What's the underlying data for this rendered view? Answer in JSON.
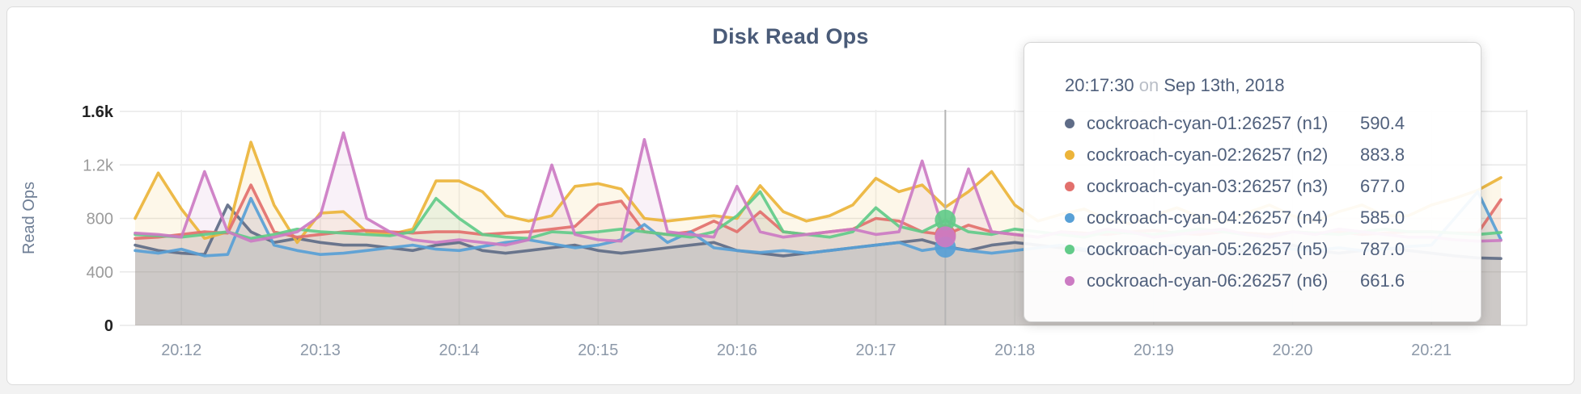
{
  "page": {
    "background": "#f2f2f2",
    "card_background": "#ffffff"
  },
  "chart_data": {
    "type": "line",
    "title": "Disk Read Ops",
    "ylabel": "Read Ops",
    "ylim": [
      0,
      1600
    ],
    "grid": true,
    "x_start": "20:11:40",
    "x_end": "20:21:30",
    "x_step_seconds": 10,
    "x_ticks": [
      {
        "label": "20:12",
        "sec": 20
      },
      {
        "label": "20:13",
        "sec": 80
      },
      {
        "label": "20:14",
        "sec": 140
      },
      {
        "label": "20:15",
        "sec": 200
      },
      {
        "label": "20:16",
        "sec": 260
      },
      {
        "label": "20:17",
        "sec": 320
      },
      {
        "label": "20:18",
        "sec": 380
      },
      {
        "label": "20:19",
        "sec": 440
      },
      {
        "label": "20:20",
        "sec": 500
      },
      {
        "label": "20:21",
        "sec": 560
      }
    ],
    "y_ticks": [
      {
        "label": "1.6k",
        "value": 1600,
        "emph": true
      },
      {
        "label": "1.2k",
        "value": 1200,
        "emph": false
      },
      {
        "label": "800",
        "value": 800,
        "emph": false
      },
      {
        "label": "400",
        "value": 400,
        "emph": false
      },
      {
        "label": "0",
        "value": 0,
        "emph": true
      }
    ],
    "series": [
      {
        "id": "n1",
        "name": "cockroach-cyan-01:26257 (n1)",
        "color": "#5F6C87",
        "values": [
          600,
          560,
          540,
          530,
          900,
          700,
          620,
          650,
          620,
          600,
          600,
          580,
          560,
          600,
          620,
          560,
          540,
          560,
          580,
          600,
          560,
          540,
          560,
          580,
          600,
          620,
          560,
          540,
          520,
          540,
          560,
          580,
          600,
          620,
          640,
          590.4,
          560,
          600,
          620,
          600,
          580,
          560,
          540,
          560,
          580,
          600,
          560,
          540,
          560,
          580,
          600,
          560,
          540,
          560,
          580,
          560,
          540,
          520,
          505,
          500
        ]
      },
      {
        "id": "n2",
        "name": "cockroach-cyan-02:26257 (n2)",
        "color": "#ECB43A",
        "values": [
          800,
          1140,
          870,
          650,
          700,
          1370,
          900,
          620,
          840,
          850,
          700,
          680,
          720,
          1080,
          1080,
          1000,
          820,
          780,
          820,
          1040,
          1060,
          1020,
          800,
          780,
          800,
          820,
          800,
          1045,
          850,
          780,
          820,
          900,
          1100,
          1000,
          1050,
          883.8,
          1000,
          1150,
          900,
          780,
          830,
          870,
          790,
          760,
          820,
          880,
          810,
          770,
          840,
          900,
          820,
          780,
          850,
          900,
          820,
          820,
          900,
          950,
          1010,
          1105
        ]
      },
      {
        "id": "n3",
        "name": "cockroach-cyan-03:26257 (n3)",
        "color": "#E2706C",
        "values": [
          650,
          660,
          680,
          700,
          690,
          1050,
          700,
          660,
          680,
          700,
          710,
          700,
          690,
          700,
          700,
          680,
          690,
          700,
          720,
          740,
          900,
          930,
          700,
          680,
          700,
          780,
          700,
          850,
          700,
          680,
          700,
          720,
          800,
          780,
          700,
          677,
          750,
          700,
          680,
          660,
          700,
          690,
          680,
          700,
          710,
          690,
          680,
          700,
          690,
          680,
          700,
          690,
          700,
          680,
          690,
          700,
          700,
          690,
          690,
          940
        ]
      },
      {
        "id": "n4",
        "name": "cockroach-cyan-04:26257 (n4)",
        "color": "#58A0D6",
        "values": [
          560,
          540,
          570,
          520,
          530,
          950,
          600,
          560,
          530,
          540,
          560,
          580,
          600,
          570,
          560,
          590,
          620,
          640,
          610,
          580,
          600,
          640,
          755,
          620,
          700,
          580,
          560,
          545,
          560,
          540,
          560,
          580,
          600,
          620,
          560,
          585,
          560,
          540,
          560,
          580,
          600,
          570,
          560,
          580,
          600,
          590,
          570,
          560,
          580,
          600,
          570,
          560,
          580,
          560,
          570,
          590,
          600,
          800,
          1000,
          640
        ]
      },
      {
        "id": "n5",
        "name": "cockroach-cyan-05:26257 (n5)",
        "color": "#62CB89",
        "values": [
          680,
          670,
          660,
          680,
          700,
          650,
          680,
          720,
          700,
          690,
          680,
          670,
          700,
          950,
          800,
          680,
          660,
          650,
          700,
          690,
          700,
          720,
          700,
          680,
          660,
          700,
          820,
          1000,
          700,
          680,
          660,
          700,
          880,
          740,
          700,
          787,
          700,
          680,
          720,
          700,
          680,
          660,
          700,
          690,
          680,
          700,
          720,
          700,
          680,
          660,
          700,
          690,
          680,
          700,
          720,
          700,
          700,
          690,
          680,
          695
        ]
      },
      {
        "id": "n6",
        "name": "cockroach-cyan-06:26257 (n6)",
        "color": "#CC7BC3",
        "values": [
          690,
          680,
          660,
          1150,
          700,
          630,
          660,
          700,
          820,
          1440,
          800,
          700,
          640,
          620,
          640,
          620,
          600,
          640,
          1200,
          680,
          640,
          630,
          1390,
          700,
          680,
          660,
          1040,
          700,
          660,
          680,
          700,
          720,
          680,
          700,
          1230,
          661.6,
          1170,
          700,
          680,
          660,
          700,
          680,
          720,
          700,
          660,
          680,
          700,
          720,
          680,
          660,
          700,
          680,
          720,
          700,
          680,
          660,
          660,
          640,
          630,
          635
        ]
      }
    ]
  },
  "tooltip": {
    "time": "20:17:30",
    "on_word": "on",
    "date": "Sep 13th, 2018",
    "rows": [
      {
        "series": "n1",
        "label": "cockroach-cyan-01:26257 (n1)",
        "value": "590.4"
      },
      {
        "series": "n2",
        "label": "cockroach-cyan-02:26257 (n2)",
        "value": "883.8"
      },
      {
        "series": "n3",
        "label": "cockroach-cyan-03:26257 (n3)",
        "value": "677.0"
      },
      {
        "series": "n4",
        "label": "cockroach-cyan-04:26257 (n4)",
        "value": "585.0"
      },
      {
        "series": "n5",
        "label": "cockroach-cyan-05:26257 (n5)",
        "value": "787.0"
      },
      {
        "series": "n6",
        "label": "cockroach-cyan-06:26257 (n6)",
        "value": "661.6"
      }
    ]
  },
  "hover": {
    "time_seconds": 350,
    "index": 35,
    "dot_series": [
      "n3",
      "n4",
      "n5",
      "n6"
    ],
    "dot_radius": 13,
    "guideline_color": "#b5b5b5"
  }
}
